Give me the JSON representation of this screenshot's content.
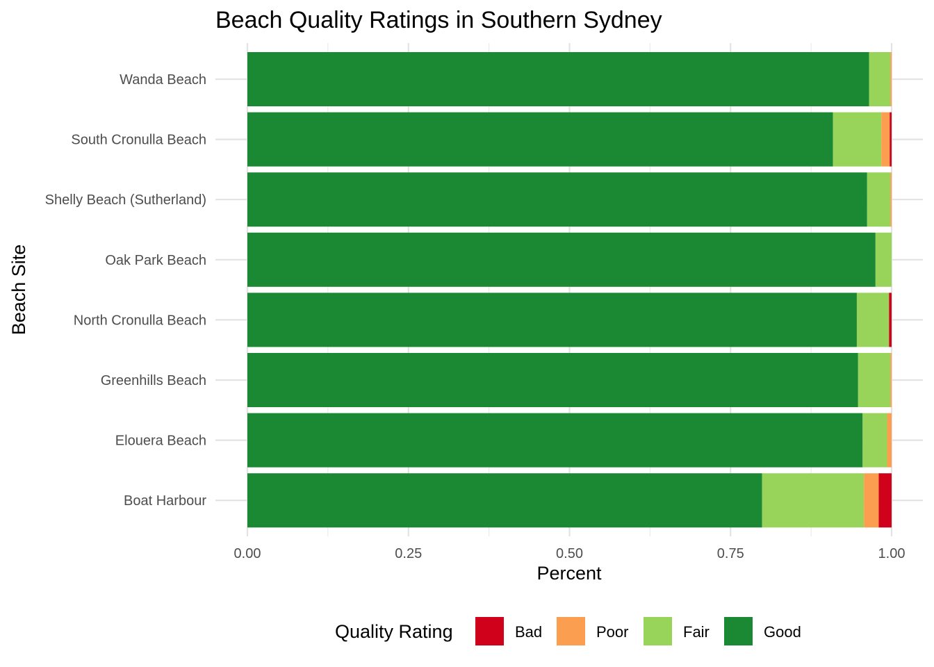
{
  "chart_data": {
    "type": "bar",
    "orientation": "horizontal",
    "stacked": true,
    "title": "Beach Quality Ratings in Southern Sydney",
    "xlabel": "Percent",
    "ylabel": "Beach Site",
    "xlim": [
      0,
      1
    ],
    "x_ticks": [
      "0.00",
      "0.25",
      "0.50",
      "0.75",
      "1.00"
    ],
    "x_tick_values": [
      0,
      0.25,
      0.5,
      0.75,
      1.0
    ],
    "grid": true,
    "legend_position": "bottom",
    "legend_title": "Quality Rating",
    "categories": [
      "Wanda Beach",
      "South Cronulla Beach",
      "Shelly Beach (Sutherland)",
      "Oak Park Beach",
      "North Cronulla Beach",
      "Greenhills Beach",
      "Elouera Beach",
      "Boat Harbour"
    ],
    "series": [
      {
        "name": "Good",
        "color": "#1b8833",
        "values": [
          0.965,
          0.909,
          0.962,
          0.975,
          0.946,
          0.948,
          0.955,
          0.799
        ]
      },
      {
        "name": "Fair",
        "color": "#98d45a",
        "values": [
          0.033,
          0.075,
          0.036,
          0.025,
          0.05,
          0.05,
          0.038,
          0.158
        ]
      },
      {
        "name": "Poor",
        "color": "#fc9e50",
        "values": [
          0.002,
          0.013,
          0.002,
          0.0,
          0.0,
          0.002,
          0.007,
          0.023
        ]
      },
      {
        "name": "Bad",
        "color": "#d0021b",
        "values": [
          0.0,
          0.003,
          0.0,
          0.0,
          0.004,
          0.0,
          0.0,
          0.02
        ]
      }
    ],
    "legend_order": [
      "Bad",
      "Poor",
      "Fair",
      "Good"
    ]
  }
}
